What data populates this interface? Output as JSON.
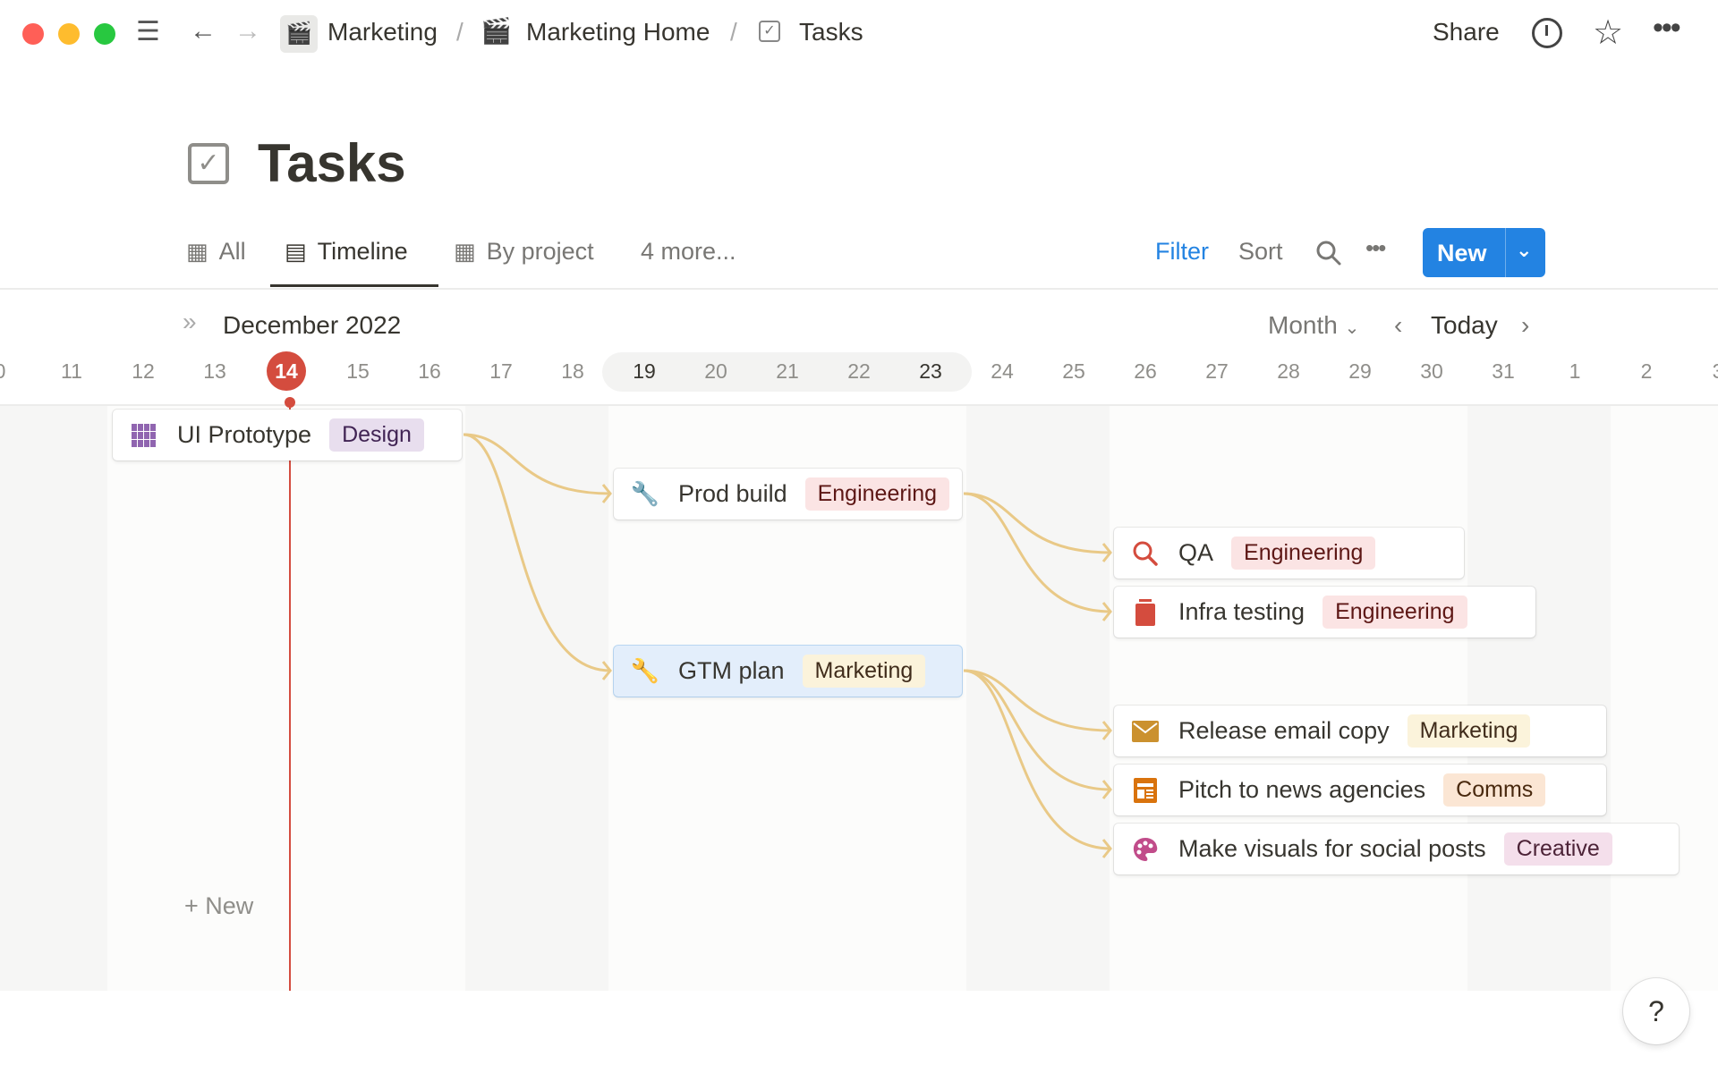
{
  "window": {
    "controls": [
      "close",
      "minimize",
      "maximize"
    ]
  },
  "breadcrumb": [
    {
      "label": "Marketing",
      "icon": "clapper-board-icon"
    },
    {
      "label": "Marketing Home",
      "icon": "clapper-board-icon"
    },
    {
      "label": "Tasks",
      "icon": "checkbox-icon"
    }
  ],
  "topbar": {
    "share": "Share"
  },
  "page": {
    "title": "Tasks"
  },
  "tabs": [
    {
      "label": "All",
      "icon": "table-icon"
    },
    {
      "label": "Timeline",
      "icon": "timeline-icon",
      "active": true
    },
    {
      "label": "By project",
      "icon": "table-icon"
    },
    {
      "label": "4 more..."
    }
  ],
  "toolbar": {
    "filter": "Filter",
    "sort": "Sort",
    "new": "New",
    "filter_color": "#2383e2"
  },
  "timeline": {
    "month": "December 2022",
    "scale": "Month",
    "today": "Today",
    "current_day": "14",
    "days": [
      "0",
      "11",
      "12",
      "13",
      "14",
      "15",
      "16",
      "17",
      "18",
      "19",
      "20",
      "21",
      "22",
      "23",
      "24",
      "25",
      "26",
      "27",
      "28",
      "29",
      "30",
      "31",
      "1",
      "2",
      "3"
    ],
    "highlighted_week": [
      "19",
      "23"
    ],
    "add_new": "New"
  },
  "tasks": [
    {
      "name": "UI Prototype",
      "icon": "grid-icon",
      "tag": "Design",
      "tag_bg": "#e8deee",
      "tag_fg": "#412454"
    },
    {
      "name": "Prod build",
      "icon": "wrench-icon",
      "tag": "Engineering",
      "tag_bg": "#fbe4e4",
      "tag_fg": "#5d1715"
    },
    {
      "name": "QA",
      "icon": "magnifier-icon",
      "tag": "Engineering",
      "tag_bg": "#fbe4e4",
      "tag_fg": "#5d1715"
    },
    {
      "name": "Infra testing",
      "icon": "database-icon",
      "tag": "Engineering",
      "tag_bg": "#fbe4e4",
      "tag_fg": "#5d1715"
    },
    {
      "name": "GTM plan",
      "icon": "wrench-icon",
      "tag": "Marketing",
      "tag_bg": "#fbf3db",
      "tag_fg": "#402c1b",
      "selected": true
    },
    {
      "name": "Release email copy",
      "icon": "envelope-icon",
      "tag": "Marketing",
      "tag_bg": "#fbf3db",
      "tag_fg": "#402c1b"
    },
    {
      "name": "Pitch to news agencies",
      "icon": "newspaper-icon",
      "tag": "Comms",
      "tag_bg": "#fbe6d4",
      "tag_fg": "#49290e"
    },
    {
      "name": "Make visuals for social posts",
      "icon": "palette-icon",
      "tag": "Creative",
      "tag_bg": "#f4dfeb",
      "tag_fg": "#4c2337"
    }
  ],
  "dependencies": [
    [
      "UI Prototype",
      "Prod build"
    ],
    [
      "UI Prototype",
      "GTM plan"
    ],
    [
      "Prod build",
      "QA"
    ],
    [
      "Prod build",
      "Infra testing"
    ],
    [
      "GTM plan",
      "Release email copy"
    ],
    [
      "GTM plan",
      "Pitch to news agencies"
    ],
    [
      "GTM plan",
      "Make visuals for social posts"
    ]
  ],
  "colors": {
    "today": "#d44c3e",
    "dependency": "#e9c987",
    "accent": "#2383e2"
  },
  "help": "?"
}
